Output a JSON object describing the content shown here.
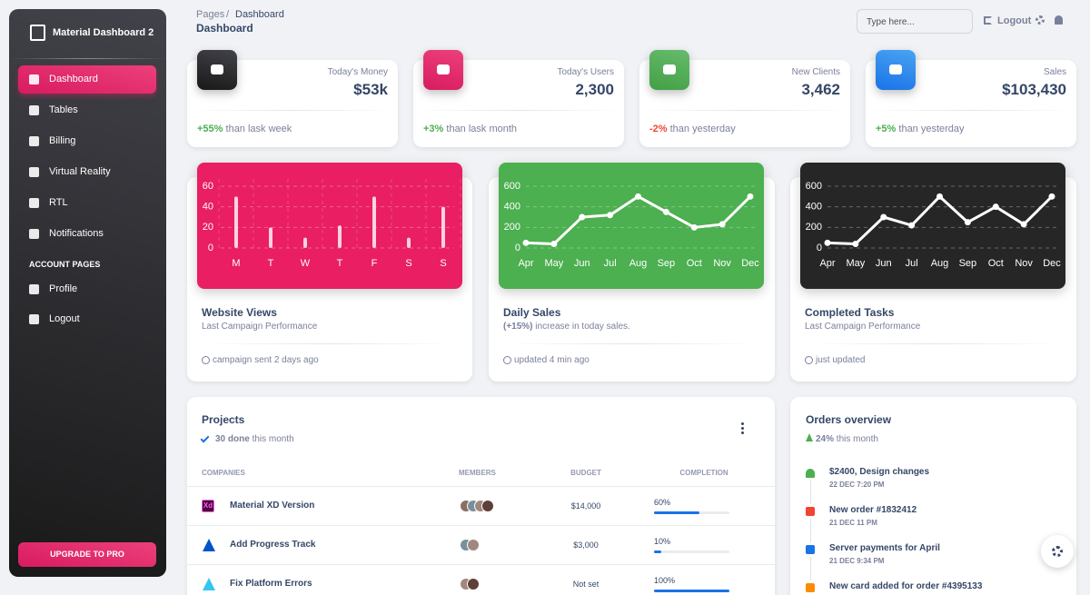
{
  "sidebar": {
    "brand": "Material Dashboard 2",
    "nav": [
      "Dashboard",
      "Tables",
      "Billing",
      "Virtual Reality",
      "RTL",
      "Notifications"
    ],
    "section": "ACCOUNT PAGES",
    "account": [
      "Profile",
      "Logout"
    ],
    "upgrade": "UPGRADE TO PRO"
  },
  "header": {
    "breadcrumb": [
      "Pages",
      "Dashboard"
    ],
    "separator": "/",
    "title": "Dashboard",
    "search_placeholder": "Type here...",
    "logout": "Logout"
  },
  "stats": [
    {
      "label": "Today's Money",
      "value": "$53k",
      "change": "+55%",
      "note": "than lask week"
    },
    {
      "label": "Today's Users",
      "value": "2,300",
      "change": "+3%",
      "note": "than lask month"
    },
    {
      "label": "New Clients",
      "value": "3,462",
      "change": "-2%",
      "note": "than yesterday"
    },
    {
      "label": "Sales",
      "value": "$103,430",
      "change": "+5%",
      "note": "than yesterday"
    }
  ],
  "charts": [
    {
      "type": "bar",
      "title": "Website Views",
      "subtitle": "Last Campaign Performance",
      "footer": "campaign sent 2 days ago",
      "categories": [
        "M",
        "T",
        "W",
        "T",
        "F",
        "S",
        "S"
      ],
      "values": [
        50,
        20,
        10,
        22,
        50,
        10,
        40
      ],
      "ylim": [
        0,
        60
      ],
      "yticks": [
        0,
        20,
        40,
        60
      ],
      "color": "#e91e63"
    },
    {
      "type": "line",
      "title": "Daily Sales",
      "subtitle_highlight": "(+15%)",
      "subtitle": "increase in today sales.",
      "footer": "updated 4 min ago",
      "categories": [
        "Apr",
        "May",
        "Jun",
        "Jul",
        "Aug",
        "Sep",
        "Oct",
        "Nov",
        "Dec"
      ],
      "values": [
        50,
        40,
        300,
        320,
        500,
        350,
        200,
        230,
        500
      ],
      "ylim": [
        0,
        600
      ],
      "yticks": [
        0,
        200,
        400,
        600
      ],
      "color": "#4caf50"
    },
    {
      "type": "line",
      "title": "Completed Tasks",
      "subtitle": "Last Campaign Performance",
      "footer": "just updated",
      "categories": [
        "Apr",
        "May",
        "Jun",
        "Jul",
        "Aug",
        "Sep",
        "Oct",
        "Nov",
        "Dec"
      ],
      "values": [
        50,
        40,
        300,
        220,
        500,
        250,
        400,
        230,
        500
      ],
      "ylim": [
        0,
        600
      ],
      "yticks": [
        0,
        200,
        400,
        600
      ],
      "color": "#262626"
    }
  ],
  "projects": {
    "title": "Projects",
    "done": "30 done",
    "period": "this month",
    "columns": [
      "COMPANIES",
      "MEMBERS",
      "BUDGET",
      "COMPLETION"
    ],
    "rows": [
      {
        "logo": "Xd",
        "name": "Material XD Version",
        "budget": "$14,000",
        "completion": 60,
        "completion_label": "60%"
      },
      {
        "name": "Add Progress Track",
        "budget": "$3,000",
        "completion": 10,
        "completion_label": "10%"
      },
      {
        "name": "Fix Platform Errors",
        "budget": "Not set",
        "completion": 100,
        "completion_label": "100%"
      }
    ]
  },
  "orders": {
    "title": "Orders overview",
    "change": "24%",
    "period": "this month",
    "items": [
      {
        "text": "$2400, Design changes",
        "date": "22 DEC 7:20 PM"
      },
      {
        "text": "New order #1832412",
        "date": "21 DEC 11 PM"
      },
      {
        "text": "Server payments for April",
        "date": "21 DEC 9:34 PM"
      },
      {
        "text": "New card added for order #4395133",
        "date": ""
      }
    ]
  }
}
